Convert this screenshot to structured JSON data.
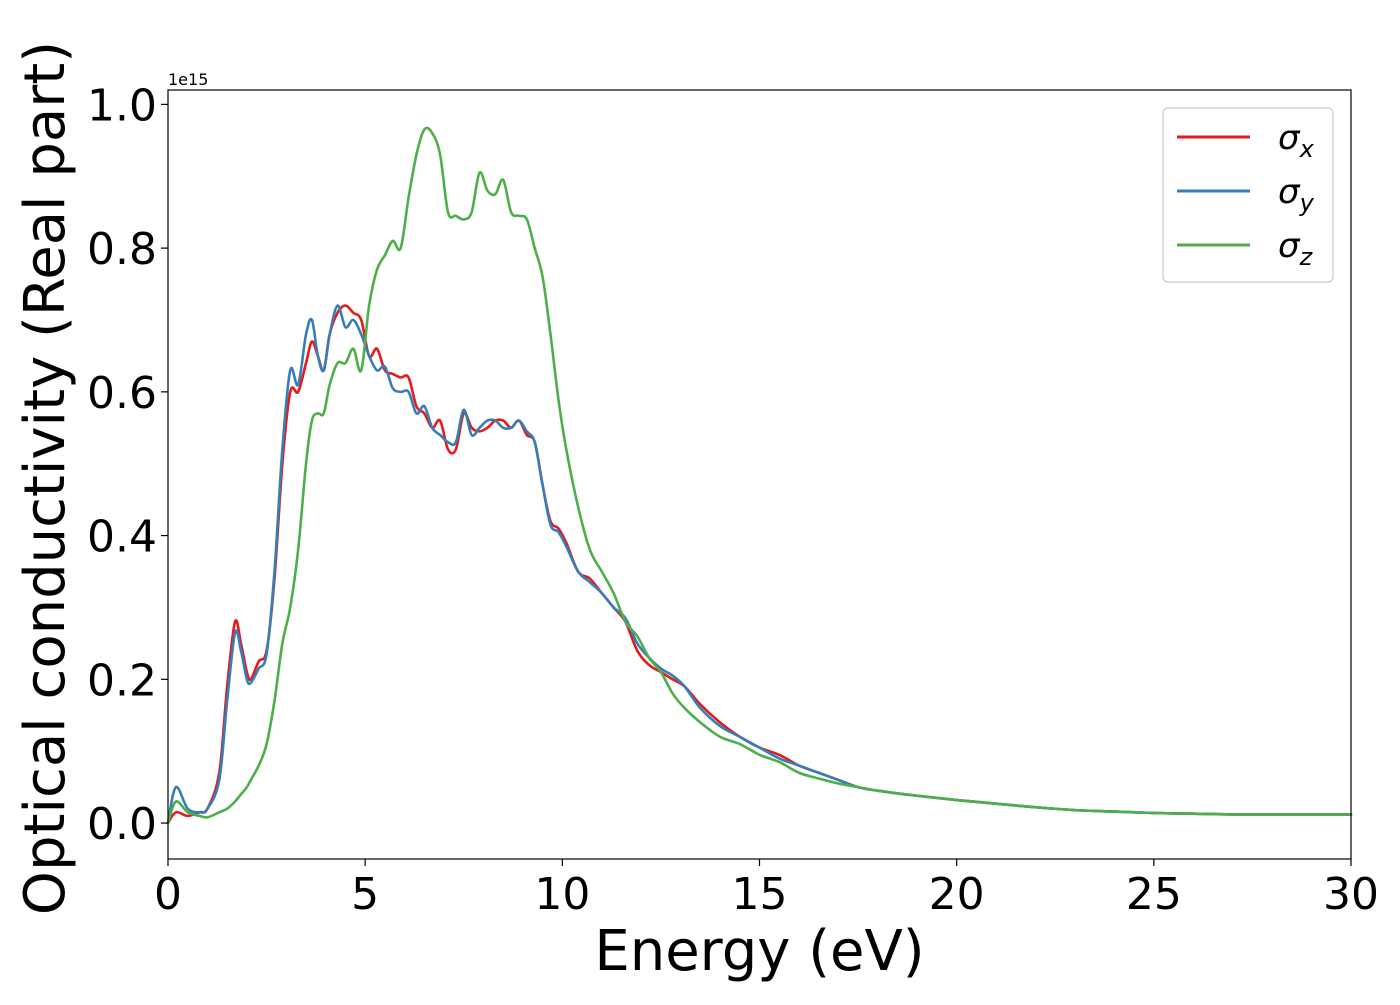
{
  "chart_data": {
    "type": "line",
    "title": "",
    "xlabel": "Energy (eV)",
    "ylabel": "Optical conductivity (Real part)",
    "y_offset_text": "1e15",
    "xlim": [
      0,
      30
    ],
    "ylim": [
      -0.05,
      1.02
    ],
    "xticks": [
      0,
      5,
      10,
      15,
      20,
      25,
      30
    ],
    "yticks": [
      0.0,
      0.2,
      0.4,
      0.6,
      0.8,
      1.0
    ],
    "xtick_labels": [
      "0",
      "5",
      "10",
      "15",
      "20",
      "25",
      "30"
    ],
    "ytick_labels": [
      "0.0",
      "0.2",
      "0.4",
      "0.6",
      "0.8",
      "1.0"
    ],
    "grid": false,
    "legend_position": "top-right",
    "x": [
      0,
      0.2,
      0.5,
      0.8,
      1.0,
      1.3,
      1.5,
      1.7,
      1.85,
      2.0,
      2.1,
      2.3,
      2.5,
      2.7,
      2.9,
      3.1,
      3.3,
      3.5,
      3.65,
      3.8,
      3.95,
      4.1,
      4.3,
      4.5,
      4.7,
      4.9,
      5.1,
      5.3,
      5.5,
      5.7,
      5.9,
      6.1,
      6.3,
      6.5,
      6.7,
      6.9,
      7.1,
      7.3,
      7.5,
      7.7,
      7.9,
      8.1,
      8.3,
      8.5,
      8.7,
      8.9,
      9.1,
      9.3,
      9.5,
      9.7,
      9.9,
      10.1,
      10.4,
      10.7,
      11.0,
      11.3,
      11.6,
      11.9,
      12.2,
      12.5,
      12.8,
      13.1,
      13.5,
      14.0,
      14.5,
      15.0,
      15.5,
      16.0,
      16.5,
      17.0,
      17.5,
      18.0,
      19.0,
      20.0,
      21.0,
      22.0,
      23.0,
      24.0,
      25.0,
      26.0,
      27.0,
      28.0,
      29.0,
      30.0
    ],
    "series": [
      {
        "name": "σx",
        "color": "#e41a1c",
        "values": [
          0.0,
          0.015,
          0.01,
          0.015,
          0.02,
          0.07,
          0.19,
          0.28,
          0.25,
          0.21,
          0.2,
          0.225,
          0.24,
          0.34,
          0.5,
          0.6,
          0.6,
          0.64,
          0.67,
          0.65,
          0.63,
          0.68,
          0.71,
          0.72,
          0.71,
          0.7,
          0.65,
          0.66,
          0.63,
          0.625,
          0.62,
          0.62,
          0.58,
          0.57,
          0.55,
          0.56,
          0.52,
          0.52,
          0.57,
          0.55,
          0.545,
          0.55,
          0.56,
          0.56,
          0.55,
          0.56,
          0.54,
          0.53,
          0.47,
          0.42,
          0.41,
          0.39,
          0.35,
          0.34,
          0.32,
          0.3,
          0.28,
          0.24,
          0.22,
          0.21,
          0.2,
          0.19,
          0.165,
          0.14,
          0.12,
          0.105,
          0.095,
          0.08,
          0.07,
          0.06,
          0.05,
          0.045,
          0.038,
          0.032,
          0.027,
          0.022,
          0.018,
          0.016,
          0.014,
          0.013,
          0.012,
          0.012,
          0.012,
          0.012
        ]
      },
      {
        "name": "σy",
        "color": "#377eb8",
        "values": [
          0.0,
          0.05,
          0.02,
          0.015,
          0.02,
          0.06,
          0.17,
          0.265,
          0.24,
          0.2,
          0.195,
          0.215,
          0.235,
          0.35,
          0.52,
          0.63,
          0.61,
          0.68,
          0.7,
          0.65,
          0.63,
          0.68,
          0.72,
          0.69,
          0.7,
          0.68,
          0.65,
          0.63,
          0.635,
          0.605,
          0.6,
          0.6,
          0.57,
          0.58,
          0.55,
          0.54,
          0.53,
          0.53,
          0.575,
          0.54,
          0.55,
          0.56,
          0.56,
          0.55,
          0.55,
          0.56,
          0.545,
          0.53,
          0.47,
          0.415,
          0.405,
          0.385,
          0.35,
          0.335,
          0.32,
          0.3,
          0.285,
          0.25,
          0.23,
          0.215,
          0.205,
          0.19,
          0.16,
          0.135,
          0.12,
          0.105,
          0.09,
          0.08,
          0.07,
          0.06,
          0.05,
          0.045,
          0.038,
          0.032,
          0.027,
          0.022,
          0.018,
          0.016,
          0.014,
          0.013,
          0.012,
          0.012,
          0.012,
          0.012
        ]
      },
      {
        "name": "σz",
        "color": "#4daf4a",
        "values": [
          0.0,
          0.03,
          0.015,
          0.01,
          0.008,
          0.015,
          0.02,
          0.03,
          0.04,
          0.05,
          0.06,
          0.08,
          0.11,
          0.17,
          0.25,
          0.3,
          0.38,
          0.5,
          0.56,
          0.57,
          0.57,
          0.61,
          0.64,
          0.64,
          0.66,
          0.63,
          0.72,
          0.77,
          0.79,
          0.81,
          0.8,
          0.87,
          0.93,
          0.965,
          0.96,
          0.93,
          0.85,
          0.845,
          0.84,
          0.85,
          0.905,
          0.88,
          0.875,
          0.895,
          0.85,
          0.845,
          0.84,
          0.8,
          0.76,
          0.68,
          0.59,
          0.52,
          0.44,
          0.38,
          0.35,
          0.32,
          0.28,
          0.26,
          0.23,
          0.21,
          0.18,
          0.16,
          0.14,
          0.12,
          0.11,
          0.095,
          0.085,
          0.07,
          0.062,
          0.055,
          0.05,
          0.045,
          0.038,
          0.032,
          0.027,
          0.022,
          0.018,
          0.016,
          0.014,
          0.013,
          0.012,
          0.012,
          0.012,
          0.012
        ]
      }
    ]
  }
}
